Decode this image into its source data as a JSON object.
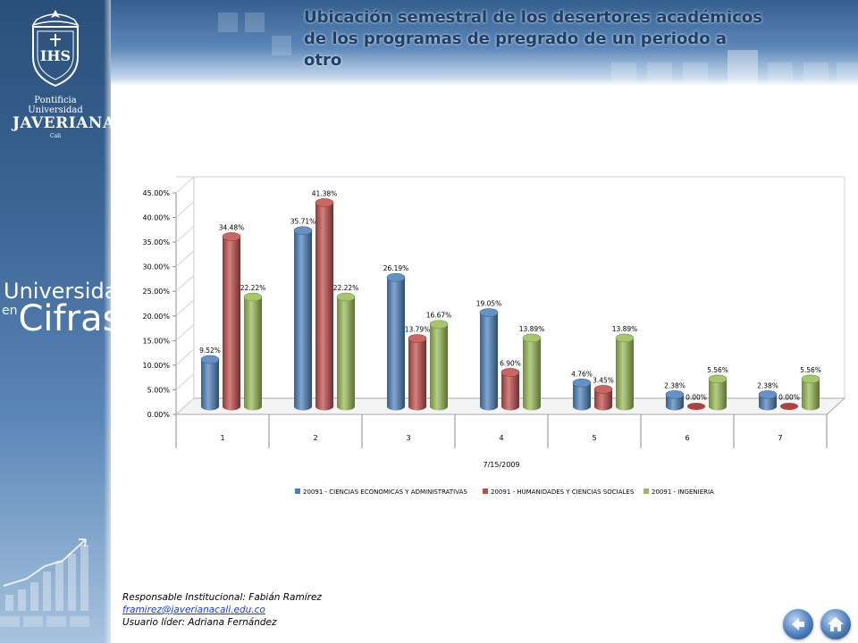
{
  "header": {
    "title": "Ubicación semestral de los desertores académicos de los programas de pregrado de un periodo a otro"
  },
  "sidebar": {
    "university_line1": "Pontificia Universidad",
    "university_line2": "JAVERIANA",
    "university_line3": "Cali",
    "emblem_letters": "IHS",
    "brand_line1": "Universidad",
    "brand_en": "en",
    "brand_line2": "Cifras"
  },
  "footer": {
    "responsable": "Responsable Institucional: Fabián Ramírez",
    "email": "framirez@javerianacali.edu.co",
    "usuario": "Usuario líder: Adriana Fernández"
  },
  "nav": {
    "back_icon": "arrow-left-icon",
    "home_icon": "home-icon"
  },
  "chart_data": {
    "type": "bar",
    "style": "3d-cylinder",
    "categories": [
      "1",
      "2",
      "3",
      "4",
      "5",
      "6",
      "7"
    ],
    "xlabel": "7/15/2009",
    "ylabel": "",
    "ylim": [
      0,
      45
    ],
    "yticks": [
      "0.00%",
      "5.00%",
      "10.00%",
      "15.00%",
      "20.00%",
      "25.00%",
      "30.00%",
      "35.00%",
      "40.00%",
      "45.00%"
    ],
    "grid": false,
    "legend_position": "bottom",
    "series": [
      {
        "name": "20091 - CIENCIAS ECONOMICAS Y ADMINISTRATIVAS",
        "color": "#4a7ebb",
        "values": [
          9.52,
          35.71,
          26.19,
          19.05,
          4.76,
          2.38,
          2.38
        ],
        "labels": [
          "9.52%",
          "35.71%",
          "26.19%",
          "19.05%",
          "4.76%",
          "2.38%",
          "2.38%"
        ]
      },
      {
        "name": "20091 - HUMANIDADES Y CIENCIAS SOCIALES",
        "color": "#be4b48",
        "values": [
          34.48,
          41.38,
          13.79,
          6.9,
          3.45,
          0.0,
          0.0
        ],
        "labels": [
          "34.48%",
          "41.38%",
          "13.79%",
          "6.90%",
          "3.45%",
          "0.00%",
          "0.00%"
        ]
      },
      {
        "name": "20091 - INGENIERIA",
        "color": "#98b954",
        "values": [
          22.22,
          22.22,
          16.67,
          13.89,
          13.89,
          5.56,
          5.56
        ],
        "labels": [
          "22.22%",
          "22.22%",
          "16.67%",
          "13.89%",
          "13.89%",
          "5.56%",
          "5.56%"
        ]
      }
    ]
  }
}
